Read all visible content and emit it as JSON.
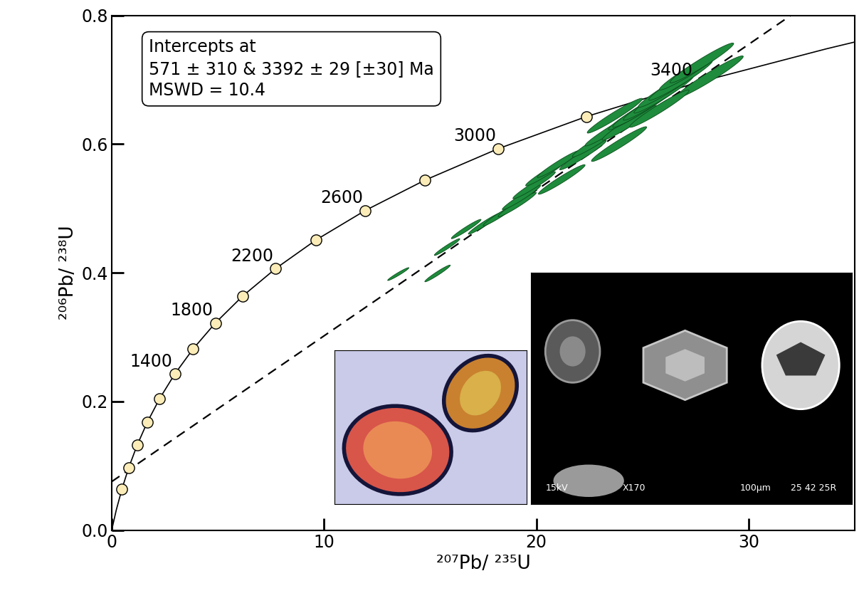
{
  "chart_data": {
    "type": "scatter",
    "x_label": "²⁰⁷Pb/ ²³⁵U",
    "y_label": "²⁰⁶Pb/ ²³⁸U",
    "xlim": [
      0,
      35
    ],
    "ylim": [
      0,
      0.8
    ],
    "xticks": [
      0,
      10,
      20,
      30
    ],
    "yticks": [
      0.0,
      0.2,
      0.4,
      0.6,
      0.8
    ],
    "annotation": "Intercepts at\n571 ± 310 & 3392 ± 29 [±30] Ma\nMSWD = 10.4",
    "concordia": {
      "color": "#000000",
      "ages": [
        0,
        200,
        400,
        600,
        800,
        1000,
        1200,
        1400,
        1600,
        1800,
        2000,
        2200,
        2400,
        2600,
        2800,
        3000,
        3200,
        3400,
        3600,
        3650
      ],
      "x": [
        0,
        0.2177,
        0.4828,
        0.8056,
        1.1988,
        1.6774,
        2.2603,
        2.9703,
        3.8345,
        4.887,
        6.169,
        7.73,
        9.63,
        11.945,
        14.762,
        18.193,
        22.37,
        27.46,
        33.66,
        35.4
      ],
      "y": [
        0,
        0.0315,
        0.064,
        0.0975,
        0.1321,
        0.1678,
        0.2046,
        0.2426,
        0.2817,
        0.3221,
        0.3638,
        0.4067,
        0.4511,
        0.4968,
        0.544,
        0.5926,
        0.6428,
        0.6945,
        0.7479,
        0.7617
      ]
    },
    "marker_ages": [
      400,
      600,
      800,
      1000,
      1200,
      1400,
      1600,
      1800,
      2000,
      2200,
      2400,
      2600,
      2800,
      3000,
      3200
    ],
    "marker_color": "#fbecb8",
    "age_labels": [
      1400,
      1800,
      2200,
      2600,
      3000,
      3400
    ],
    "discordia": {
      "x": [
        0,
        35
      ],
      "y": [
        0.0755,
        0.868
      ],
      "color": "#000000",
      "line_style": "dashed"
    },
    "ellipses": {
      "color": "#1e8c3c",
      "x": [
        13.5,
        15.35,
        15.8,
        16.7,
        17.6,
        18.3,
        19.1,
        19.3,
        19.9,
        20.5,
        21.05,
        21.2,
        22.2,
        22.9,
        23.5,
        23.9,
        24.4,
        24.7,
        25.0,
        25.5,
        26.0,
        26.3,
        26.8,
        27.3,
        27.8,
        28.15,
        23.7,
        25.8
      ],
      "y": [
        0.398,
        0.399,
        0.44,
        0.468,
        0.477,
        0.49,
        0.506,
        0.517,
        0.536,
        0.556,
        0.569,
        0.545,
        0.583,
        0.605,
        0.622,
        0.6,
        0.633,
        0.649,
        0.655,
        0.666,
        0.677,
        0.688,
        0.699,
        0.715,
        0.726,
        0.704,
        0.644,
        0.655
      ],
      "x_err": [
        0.5,
        0.6,
        0.6,
        0.7,
        0.8,
        0.8,
        0.9,
        0.9,
        1.0,
        1.0,
        1.0,
        1.1,
        1.1,
        1.2,
        1.2,
        1.3,
        1.3,
        1.3,
        1.4,
        1.4,
        1.4,
        1.5,
        1.5,
        1.5,
        1.5,
        1.6,
        1.3,
        1.4
      ],
      "y_err": [
        0.01,
        0.013,
        0.013,
        0.015,
        0.017,
        0.017,
        0.019,
        0.019,
        0.021,
        0.021,
        0.021,
        0.023,
        0.023,
        0.025,
        0.025,
        0.027,
        0.027,
        0.027,
        0.029,
        0.029,
        0.029,
        0.031,
        0.031,
        0.031,
        0.031,
        0.033,
        0.027,
        0.029
      ],
      "rho": [
        0.97,
        0.97,
        0.97,
        0.97,
        0.97,
        0.97,
        0.97,
        0.97,
        0.97,
        0.97,
        0.97,
        0.97,
        0.97,
        0.97,
        0.97,
        0.97,
        0.97,
        0.97,
        0.97,
        0.97,
        0.97,
        0.97,
        0.97,
        0.97,
        0.97,
        0.97,
        0.97,
        0.97
      ]
    },
    "inset_texts": [
      "15kV",
      "X170",
      "100μm",
      "25 42 25R"
    ]
  }
}
